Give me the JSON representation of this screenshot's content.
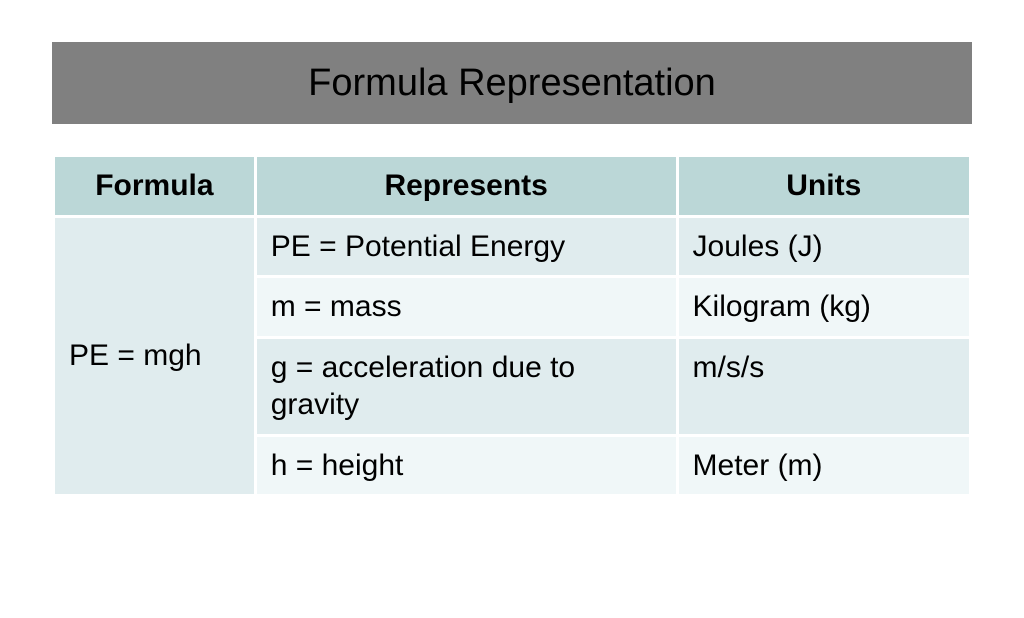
{
  "title": {
    "text": "Formula Representation",
    "bg_color": "#808080",
    "text_color": "#000000",
    "fontsize": 38
  },
  "table": {
    "header_bg": "#bbd7d7",
    "row_alt1_bg": "#e0ecee",
    "row_alt2_bg": "#f0f7f8",
    "border_color": "#ffffff",
    "fontsize": 30,
    "columns": [
      "Formula",
      "Represents",
      "Units"
    ],
    "formula_cell": "PE = mgh",
    "rows": [
      {
        "represents": "PE = Potential Energy",
        "units": "Joules (J)"
      },
      {
        "represents": "m = mass",
        "units": "Kilogram (kg)"
      },
      {
        "represents": "g = acceleration due to gravity",
        "units": "m/s/s"
      },
      {
        "represents": "h = height",
        "units": "Meter (m)"
      }
    ]
  }
}
